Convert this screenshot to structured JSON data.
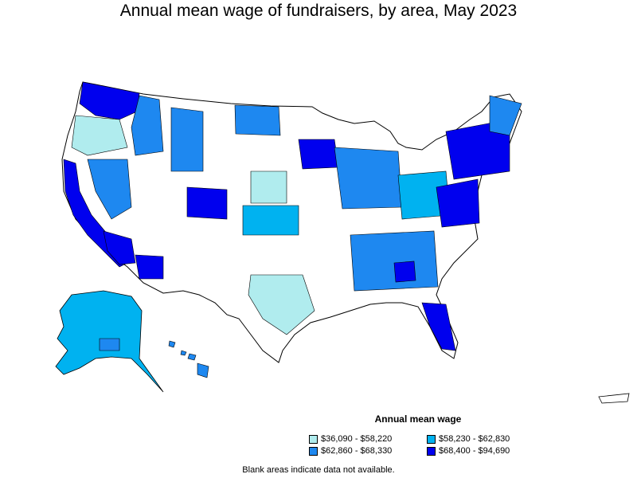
{
  "title": "Annual mean wage of fundraisers, by area, May 2023",
  "legend": {
    "title": "Annual mean wage",
    "items": [
      {
        "label": "$36,090 - $58,220",
        "color": "#b0ecee"
      },
      {
        "label": "$58,230 - $62,830",
        "color": "#00b2f0"
      },
      {
        "label": "$62,860 - $68,330",
        "color": "#1e88f0"
      },
      {
        "label": "$68,400 - $94,690",
        "color": "#0000ee"
      }
    ]
  },
  "note": "Blank areas indicate data not available.",
  "colors": {
    "no_data": "#ffffff",
    "border": "#000000"
  }
}
